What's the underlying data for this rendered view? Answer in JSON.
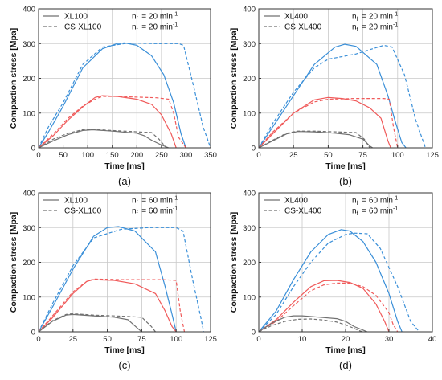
{
  "chart_data": [
    {
      "type": "line",
      "panel_label": "(a)",
      "xlabel": "Time [ms]",
      "ylabel": "Compaction stress [Mpa]",
      "xlim": [
        0,
        350
      ],
      "ylim": [
        0,
        400
      ],
      "xticks": [
        0,
        50,
        100,
        150,
        200,
        250,
        300,
        350
      ],
      "yticks": [
        0,
        100,
        200,
        300,
        400
      ],
      "grid": true,
      "legend_position": "top-left",
      "legend": [
        {
          "dash": "solid",
          "label": "XL100",
          "param_symbol": "n",
          "param_sub": "f",
          "param_value": "= 20 min",
          "param_sup": "-1"
        },
        {
          "dash": "dashed",
          "label": "CS-XL100",
          "param_symbol": "n",
          "param_sub": "f",
          "param_value": "= 20 min",
          "param_sup": "-1"
        }
      ],
      "series": [
        {
          "color": "#3a8fd8",
          "dash": "solid",
          "x": [
            0,
            20,
            50,
            90,
            130,
            160,
            175,
            200,
            230,
            255,
            275,
            290,
            300
          ],
          "y": [
            0,
            45,
            120,
            230,
            285,
            300,
            302,
            295,
            265,
            210,
            130,
            40,
            0
          ]
        },
        {
          "color": "#3a8fd8",
          "dash": "dashed",
          "x": [
            0,
            20,
            50,
            90,
            130,
            175,
            200,
            240,
            285,
            295,
            315,
            335,
            350
          ],
          "y": [
            0,
            60,
            130,
            240,
            290,
            300,
            301,
            300,
            300,
            295,
            180,
            60,
            0
          ]
        },
        {
          "color": "#f05a5a",
          "dash": "solid",
          "x": [
            0,
            30,
            60,
            90,
            115,
            130,
            160,
            200,
            230,
            250,
            270,
            280
          ],
          "y": [
            0,
            35,
            80,
            118,
            145,
            150,
            148,
            140,
            125,
            95,
            40,
            0
          ]
        },
        {
          "color": "#f05a5a",
          "dash": "dashed",
          "x": [
            0,
            30,
            60,
            90,
            115,
            130,
            160,
            200,
            240,
            265,
            275,
            285,
            300
          ],
          "y": [
            0,
            40,
            85,
            120,
            140,
            148,
            148,
            146,
            144,
            140,
            100,
            30,
            0
          ]
        },
        {
          "color": "#707070",
          "dash": "solid",
          "x": [
            0,
            30,
            60,
            90,
            110,
            150,
            200,
            215,
            230,
            250,
            265
          ],
          "y": [
            0,
            20,
            38,
            50,
            52,
            48,
            42,
            35,
            22,
            8,
            0
          ]
        },
        {
          "color": "#707070",
          "dash": "dashed",
          "x": [
            0,
            30,
            60,
            90,
            110,
            150,
            200,
            230,
            245,
            260
          ],
          "y": [
            0,
            25,
            42,
            52,
            53,
            50,
            46,
            44,
            25,
            0
          ]
        }
      ]
    },
    {
      "type": "line",
      "panel_label": "(b)",
      "xlabel": "Time [ms]",
      "ylabel": "Compaction stress [Mpa]",
      "xlim": [
        0,
        125
      ],
      "ylim": [
        0,
        400
      ],
      "xticks": [
        0,
        25,
        50,
        75,
        100,
        125
      ],
      "yticks": [
        0,
        100,
        200,
        300,
        400
      ],
      "grid": true,
      "legend_position": "top-left",
      "legend": [
        {
          "dash": "solid",
          "label": "XL400",
          "param_symbol": "n",
          "param_sub": "f",
          "param_value": "= 20 min",
          "param_sup": "-1"
        },
        {
          "dash": "dashed",
          "label": "CS-XL400",
          "param_symbol": "n",
          "param_sub": "f",
          "param_value": "= 20 min",
          "param_sup": "-1"
        }
      ],
      "series": [
        {
          "color": "#3a8fd8",
          "dash": "solid",
          "x": [
            0,
            10,
            25,
            40,
            55,
            62,
            70,
            85,
            93,
            98,
            103,
            106
          ],
          "y": [
            0,
            60,
            150,
            240,
            290,
            298,
            292,
            240,
            150,
            80,
            15,
            0
          ]
        },
        {
          "color": "#3a8fd8",
          "dash": "dashed",
          "x": [
            0,
            10,
            25,
            40,
            50,
            70,
            90,
            96,
            105,
            113,
            120
          ],
          "y": [
            0,
            70,
            160,
            230,
            255,
            270,
            295,
            290,
            210,
            80,
            0
          ]
        },
        {
          "color": "#f05a5a",
          "dash": "solid",
          "x": [
            0,
            10,
            25,
            40,
            50,
            60,
            70,
            80,
            88,
            93,
            95
          ],
          "y": [
            0,
            40,
            100,
            138,
            145,
            142,
            135,
            115,
            85,
            20,
            0
          ]
        },
        {
          "color": "#f05a5a",
          "dash": "dashed",
          "x": [
            0,
            10,
            25,
            40,
            50,
            70,
            90,
            94,
            97,
            100
          ],
          "y": [
            0,
            45,
            100,
            132,
            140,
            142,
            142,
            140,
            60,
            0
          ]
        },
        {
          "color": "#707070",
          "dash": "solid",
          "x": [
            0,
            10,
            20,
            28,
            40,
            55,
            65,
            75,
            80,
            82
          ],
          "y": [
            0,
            20,
            40,
            47,
            46,
            42,
            38,
            25,
            5,
            0
          ]
        },
        {
          "color": "#707070",
          "dash": "dashed",
          "x": [
            0,
            10,
            20,
            28,
            40,
            55,
            70,
            76,
            80
          ],
          "y": [
            0,
            22,
            42,
            48,
            48,
            46,
            44,
            25,
            0
          ]
        }
      ]
    },
    {
      "type": "line",
      "panel_label": "(c)",
      "xlabel": "Time [ms]",
      "ylabel": "Compaction stress [Mpa]",
      "xlim": [
        0,
        125
      ],
      "ylim": [
        0,
        400
      ],
      "xticks": [
        0,
        25,
        50,
        75,
        100,
        125
      ],
      "yticks": [
        0,
        100,
        200,
        300,
        400
      ],
      "grid": true,
      "legend_position": "top-left",
      "legend": [
        {
          "dash": "solid",
          "label": "XL100",
          "param_symbol": "n",
          "param_sub": "f",
          "param_value": "= 60 min",
          "param_sup": "-1"
        },
        {
          "dash": "dashed",
          "label": "CS-XL100",
          "param_symbol": "n",
          "param_sub": "f",
          "param_value": "= 60 min",
          "param_sup": "-1"
        }
      ],
      "series": [
        {
          "color": "#3a8fd8",
          "dash": "solid",
          "x": [
            0,
            10,
            25,
            40,
            50,
            58,
            70,
            85,
            92,
            97,
            100
          ],
          "y": [
            0,
            70,
            180,
            275,
            300,
            303,
            290,
            230,
            130,
            50,
            0
          ]
        },
        {
          "color": "#3a8fd8",
          "dash": "dashed",
          "x": [
            0,
            10,
            25,
            40,
            60,
            80,
            100,
            105,
            112,
            118,
            120
          ],
          "y": [
            0,
            80,
            190,
            270,
            295,
            300,
            300,
            290,
            150,
            40,
            0
          ]
        },
        {
          "color": "#f05a5a",
          "dash": "solid",
          "x": [
            0,
            10,
            25,
            35,
            40,
            55,
            70,
            85,
            92,
            97,
            100
          ],
          "y": [
            0,
            40,
            110,
            145,
            150,
            148,
            138,
            110,
            60,
            15,
            0
          ]
        },
        {
          "color": "#f05a5a",
          "dash": "dashed",
          "x": [
            0,
            10,
            25,
            35,
            40,
            60,
            90,
            100,
            103,
            106
          ],
          "y": [
            0,
            45,
            115,
            145,
            152,
            150,
            150,
            148,
            60,
            0
          ]
        },
        {
          "color": "#707070",
          "dash": "solid",
          "x": [
            0,
            10,
            20,
            25,
            40,
            55,
            65,
            72,
            75
          ],
          "y": [
            0,
            30,
            48,
            50,
            46,
            42,
            35,
            10,
            0
          ]
        },
        {
          "color": "#707070",
          "dash": "dashed",
          "x": [
            0,
            10,
            20,
            25,
            40,
            60,
            75,
            82,
            85
          ],
          "y": [
            0,
            32,
            50,
            52,
            48,
            45,
            42,
            15,
            0
          ]
        }
      ]
    },
    {
      "type": "line",
      "panel_label": "(d)",
      "xlabel": "Time [ms]",
      "ylabel": "Compaction stress [Mpa]",
      "xlim": [
        0,
        40
      ],
      "ylim": [
        0,
        400
      ],
      "xticks": [
        0,
        10,
        20,
        30,
        40
      ],
      "yticks": [
        0,
        100,
        200,
        300,
        400
      ],
      "grid": true,
      "legend_position": "top-left",
      "legend": [
        {
          "dash": "solid",
          "label": "XL400",
          "param_symbol": "n",
          "param_sub": "f",
          "param_value": "= 60 min",
          "param_sup": "-1"
        },
        {
          "dash": "dashed",
          "label": "CS-XL400",
          "param_symbol": "n",
          "param_sub": "f",
          "param_value": "= 60 min",
          "param_sup": "-1"
        }
      ],
      "series": [
        {
          "color": "#3a8fd8",
          "dash": "solid",
          "x": [
            0,
            4,
            8,
            12,
            16,
            19,
            21,
            24,
            27,
            30,
            32,
            33
          ],
          "y": [
            0,
            60,
            150,
            230,
            280,
            294,
            290,
            260,
            200,
            110,
            30,
            0
          ]
        },
        {
          "color": "#3a8fd8",
          "dash": "dashed",
          "x": [
            0,
            4,
            8,
            12,
            16,
            20,
            22,
            25,
            28,
            32,
            35,
            37
          ],
          "y": [
            0,
            50,
            130,
            200,
            255,
            280,
            284,
            282,
            240,
            130,
            30,
            0
          ]
        },
        {
          "color": "#f05a5a",
          "dash": "solid",
          "x": [
            0,
            4,
            8,
            12,
            15,
            18,
            21,
            24,
            27,
            29,
            30
          ],
          "y": [
            0,
            35,
            85,
            130,
            147,
            148,
            142,
            125,
            80,
            30,
            0
          ]
        },
        {
          "color": "#f05a5a",
          "dash": "dashed",
          "x": [
            0,
            4,
            8,
            12,
            15,
            18,
            21,
            24,
            27,
            30,
            31,
            32
          ],
          "y": [
            0,
            30,
            75,
            118,
            135,
            140,
            140,
            130,
            105,
            55,
            20,
            0
          ]
        },
        {
          "color": "#707070",
          "dash": "solid",
          "x": [
            0,
            3,
            6,
            8,
            10,
            14,
            18,
            20,
            22,
            24,
            25
          ],
          "y": [
            0,
            25,
            42,
            46,
            46,
            42,
            38,
            30,
            15,
            5,
            0
          ]
        },
        {
          "color": "#707070",
          "dash": "dashed",
          "x": [
            0,
            3,
            6,
            9,
            12,
            15,
            18,
            20,
            22,
            23,
            24
          ],
          "y": [
            0,
            18,
            30,
            36,
            37,
            34,
            28,
            20,
            10,
            4,
            0
          ]
        }
      ]
    }
  ]
}
